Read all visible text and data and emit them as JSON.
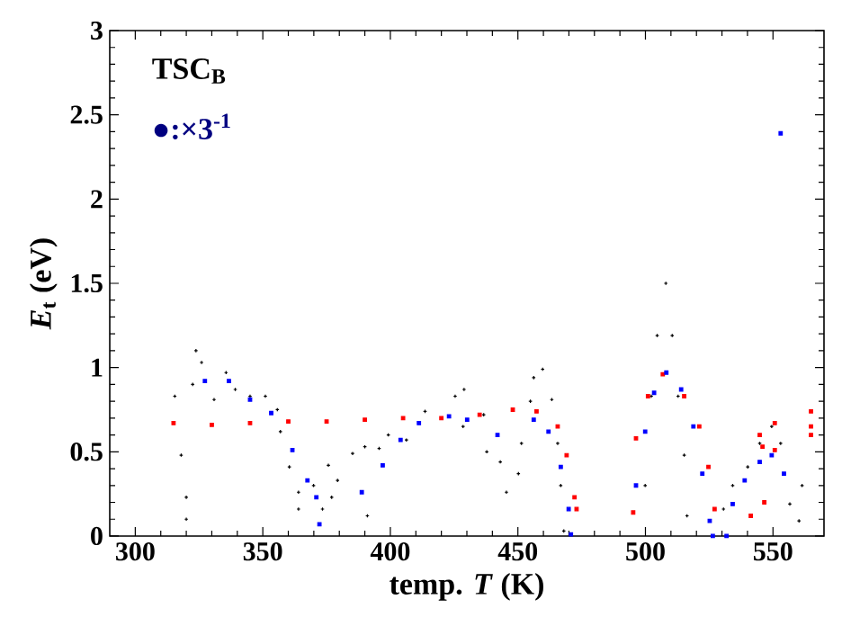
{
  "chart_data": {
    "type": "scatter",
    "xlabel": "temp. *T* (K)",
    "ylabel": "*E*$_{t}$ (eV)",
    "xlim": [
      290,
      570
    ],
    "ylim": [
      0,
      3
    ],
    "xticks": [
      300,
      350,
      400,
      450,
      500,
      550
    ],
    "yticks": [
      0,
      0.5,
      1,
      1.5,
      2,
      2.5,
      3
    ],
    "annotations": [
      "TSC$_{B}$",
      "●:×3$^{-1}$"
    ],
    "grid": false,
    "series": [
      {
        "color": "#000000",
        "marker": "cross",
        "x": [
          315.5,
          318,
          320,
          320,
          322.5,
          323.8,
          326,
          330.9,
          335.6,
          339.2,
          345,
          351,
          355.7,
          356.9,
          360.4,
          364,
          364,
          369.9,
          373.4,
          375.7,
          377,
          379.3,
          385.2,
          390,
          391,
          395.6,
          399.2,
          406.3,
          413.6,
          425.4,
          428.5,
          428.9,
          436.6,
          437.8,
          443.1,
          445.5,
          450.2,
          451.4,
          454.9,
          456.2,
          459.7,
          463.3,
          465.6,
          466.8,
          468,
          499.9,
          502.3,
          504.6,
          508,
          510.5,
          512.8,
          515.2,
          516.3,
          530.6,
          534.2,
          540.1,
          544.8,
          549.5,
          553,
          556.6,
          560.2,
          561.4
        ],
        "values": [
          0.83,
          0.48,
          0.23,
          0.1,
          0.9,
          1.1,
          1.03,
          0.81,
          0.97,
          0.87,
          0.83,
          0.83,
          0.75,
          0.62,
          0.41,
          0.26,
          0.16,
          0.3,
          0.16,
          0.42,
          0.23,
          0.33,
          0.49,
          0.53,
          0.12,
          0.52,
          0.6,
          0.57,
          0.74,
          0.83,
          0.65,
          0.87,
          0.72,
          0.5,
          0.44,
          0.26,
          0.37,
          0.55,
          0.8,
          0.94,
          0.99,
          0.81,
          0.55,
          0.3,
          0.03,
          0.3,
          0.83,
          1.19,
          1.5,
          1.19,
          0.83,
          0.48,
          0.12,
          0.16,
          0.3,
          0.41,
          0.55,
          0.65,
          0.55,
          0.19,
          0.09,
          0.3
        ]
      },
      {
        "color": "#ff0000",
        "marker": "square",
        "x": [
          315,
          330,
          345,
          360,
          375,
          390,
          405,
          420,
          435,
          448,
          457.3,
          465.6,
          469.1,
          472.2,
          473,
          495.2,
          496.3,
          501,
          506.8,
          515.2,
          521.1,
          524.7,
          527.1,
          541.3,
          544.8,
          545.9,
          546.6,
          550.7,
          550.7,
          564.9,
          564.9,
          564.9
        ],
        "values": [
          0.67,
          0.66,
          0.67,
          0.68,
          0.68,
          0.69,
          0.7,
          0.7,
          0.72,
          0.75,
          0.74,
          0.65,
          0.48,
          0.23,
          0.16,
          0.14,
          0.58,
          0.83,
          0.96,
          0.83,
          0.65,
          0.41,
          0.16,
          0.12,
          0.6,
          0.53,
          0.2,
          0.67,
          0.51,
          0.74,
          0.65,
          0.6
        ]
      },
      {
        "color": "#0000ff",
        "marker": "square",
        "x": [
          327.3,
          336.7,
          345,
          353.3,
          361.6,
          367.5,
          371,
          372.2,
          388.8,
          397,
          404,
          411.2,
          423,
          430.1,
          442,
          456.2,
          462,
          466.8,
          469.9,
          470.8,
          496.3,
          499.9,
          503.4,
          508.2,
          514,
          518.8,
          522.3,
          525.2,
          526.4,
          531.8,
          534.2,
          538.9,
          544.8,
          549.5,
          554.3,
          553
        ],
        "values": [
          0.92,
          0.92,
          0.81,
          0.73,
          0.51,
          0.33,
          0.23,
          0.07,
          0.26,
          0.42,
          0.57,
          0.67,
          0.71,
          0.69,
          0.6,
          0.69,
          0.62,
          0.41,
          0.16,
          0.01,
          0.3,
          0.62,
          0.85,
          0.97,
          0.87,
          0.65,
          0.37,
          0.09,
          0,
          0,
          0.19,
          0.33,
          0.44,
          0.48,
          0.37,
          2.39
        ]
      }
    ]
  }
}
